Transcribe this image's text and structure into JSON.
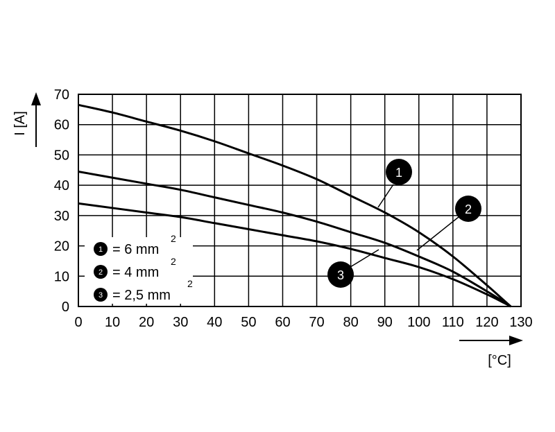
{
  "chart_data": {
    "type": "line",
    "title": "",
    "xlabel": "[°C]",
    "ylabel": "I [A]",
    "xlim": [
      0,
      130
    ],
    "ylim": [
      0,
      70
    ],
    "x_ticks": [
      "0",
      "10",
      "20",
      "30",
      "40",
      "50",
      "60",
      "70",
      "80",
      "90",
      "100",
      "110",
      "120",
      "130"
    ],
    "y_ticks": [
      "0",
      "10",
      "20",
      "30",
      "40",
      "50",
      "60",
      "70"
    ],
    "grid": true,
    "series": [
      {
        "name": "1",
        "marker": "1",
        "x": [
          0,
          10,
          20,
          30,
          40,
          50,
          60,
          70,
          80,
          90,
          100,
          110,
          120,
          125,
          127
        ],
        "y": [
          66.5,
          64,
          61,
          58,
          54.5,
          50.5,
          46.5,
          42,
          36.5,
          31,
          24.5,
          16.5,
          7,
          2,
          0
        ]
      },
      {
        "name": "2",
        "marker": "2",
        "x": [
          0,
          10,
          20,
          30,
          40,
          50,
          60,
          70,
          80,
          90,
          100,
          110,
          120,
          125,
          127
        ],
        "y": [
          44.5,
          42.5,
          40.5,
          38.5,
          36,
          33.5,
          31,
          28,
          24.5,
          21,
          16.5,
          11.5,
          5,
          1.5,
          0
        ]
      },
      {
        "name": "3",
        "marker": "3",
        "x": [
          0,
          10,
          20,
          30,
          40,
          50,
          60,
          70,
          80,
          90,
          100,
          110,
          120,
          125,
          127
        ],
        "y": [
          34,
          32.5,
          31,
          29.5,
          27.5,
          25.5,
          23.5,
          21.5,
          19,
          16,
          13,
          9,
          4,
          1.2,
          0
        ]
      }
    ],
    "legend": {
      "placement": "bottom-left",
      "entries": [
        {
          "num": "1",
          "text": "= 6 mm",
          "sup": "2"
        },
        {
          "num": "2",
          "text": "= 4 mm",
          "sup": "2"
        },
        {
          "num": "3",
          "text": "= 2,5 mm",
          "sup": "2"
        }
      ]
    }
  }
}
